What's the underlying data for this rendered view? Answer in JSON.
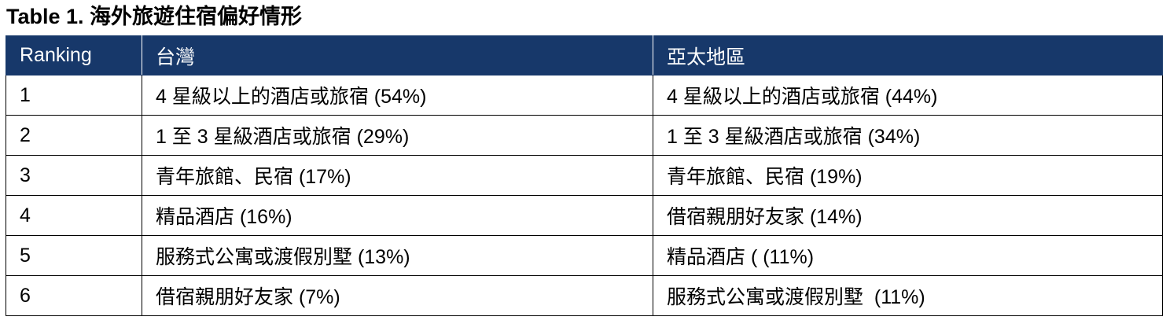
{
  "title": "Table 1. 海外旅遊住宿偏好情形",
  "table": {
    "header": [
      "Ranking",
      "台灣",
      "亞太地區"
    ],
    "rows": [
      [
        "1",
        "4 星級以上的酒店或旅宿 (54%)",
        "4 星級以上的酒店或旅宿 (44%)"
      ],
      [
        "2",
        "1 至 3 星級酒店或旅宿 (29%)",
        "1 至 3 星級酒店或旅宿 (34%)"
      ],
      [
        "3",
        "青年旅館、民宿 (17%)",
        "青年旅館、民宿 (19%)"
      ],
      [
        "4",
        "精品酒店 (16%)",
        "借宿親朋好友家 (14%)"
      ],
      [
        "5",
        "服務式公寓或渡假別墅 (13%)",
        "精品酒店 ( (11%)"
      ],
      [
        "6",
        "借宿親朋好友家 (7%)",
        "服務式公寓或渡假別墅  (11%)"
      ]
    ]
  }
}
